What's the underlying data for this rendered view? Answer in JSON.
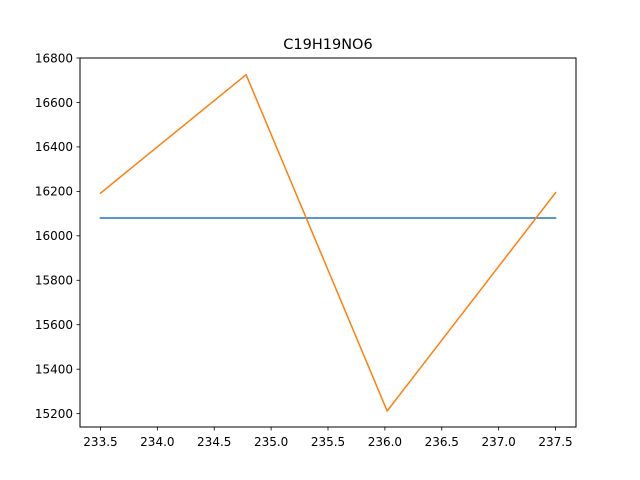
{
  "chart_data": {
    "type": "line",
    "title": "C19H19NO6",
    "xlabel": "",
    "ylabel": "",
    "xlim": [
      233.32,
      237.68
    ],
    "ylim": [
      15140,
      16800
    ],
    "x_ticks": [
      233.5,
      234.0,
      234.5,
      235.0,
      235.5,
      236.0,
      236.5,
      237.0,
      237.5
    ],
    "x_tick_labels": [
      "233.5",
      "234.0",
      "234.5",
      "235.0",
      "235.5",
      "236.0",
      "236.5",
      "237.0",
      "237.5"
    ],
    "y_ticks": [
      15200,
      15400,
      15600,
      15800,
      16000,
      16200,
      16400,
      16600,
      16800
    ],
    "y_tick_labels": [
      "15200",
      "15400",
      "15600",
      "15800",
      "16000",
      "16200",
      "16400",
      "16600",
      "16800"
    ],
    "grid": false,
    "legend": false,
    "series": [
      {
        "color": "#1f77b4",
        "points": [
          [
            233.5,
            16080
          ],
          [
            237.5,
            16080
          ]
        ]
      },
      {
        "color": "#ff7f0e",
        "points": [
          [
            233.5,
            16192
          ],
          [
            234.78,
            16725
          ],
          [
            236.02,
            15212
          ],
          [
            237.5,
            16194
          ]
        ]
      }
    ]
  }
}
